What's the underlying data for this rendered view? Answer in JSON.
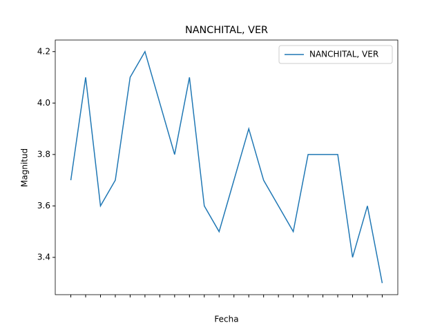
{
  "chart_data": {
    "type": "line",
    "title": "NANCHITAL, VER",
    "xlabel": "Fecha",
    "ylabel": "Magnitud",
    "categories": [
      null,
      null,
      null,
      null,
      null,
      null,
      null,
      null,
      null,
      null,
      null,
      null,
      null,
      null,
      null,
      null,
      null,
      null,
      null,
      null,
      null,
      null
    ],
    "series": [
      {
        "name": "NANCHITAL, VER",
        "color": "#1f77b4",
        "values": [
          3.7,
          4.1,
          3.6,
          3.7,
          4.1,
          4.2,
          4.0,
          3.8,
          4.1,
          3.6,
          3.5,
          3.7,
          3.9,
          3.7,
          3.6,
          3.5,
          3.8,
          3.8,
          3.8,
          3.4,
          3.6,
          3.3
        ]
      }
    ],
    "ylim": [
      3.255,
      4.245
    ],
    "yticks": [
      3.4,
      3.6,
      3.8,
      {
        "value": 4,
        "label": "4.0"
      },
      4.2
    ],
    "legend": "upper right"
  }
}
